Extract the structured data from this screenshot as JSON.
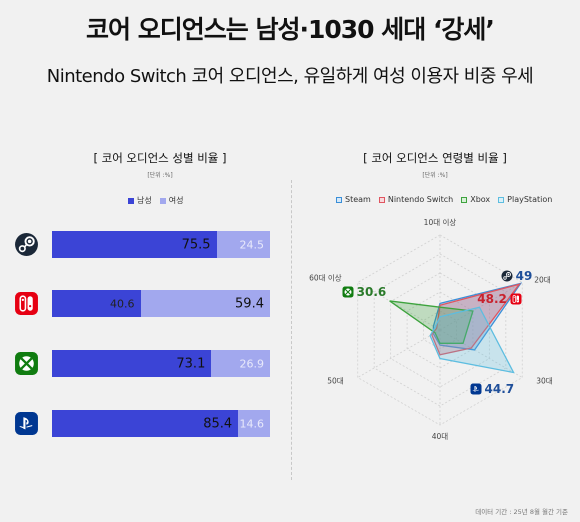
{
  "title": "코어 오디언스는 남성·1030 세대 ‘강세’",
  "subtitle": "Nintendo Switch 코어 오디언스, 유일하게 여성 이용자 비중 우세",
  "note": "데이터 기간 : 25년 8월 월간 기준",
  "colors": {
    "male": "#3b44d6",
    "female": "#a2a8ee"
  },
  "chart_data": [
    {
      "type": "bar",
      "title": "[ 코어 오디언스 성별 비율 ]",
      "unit": "[단위 :%]",
      "categories": [
        "Steam",
        "Nintendo Switch",
        "Xbox",
        "PlayStation"
      ],
      "series": [
        {
          "name": "남성",
          "values": [
            75.5,
            40.6,
            73.1,
            85.4
          ]
        },
        {
          "name": "여성",
          "values": [
            24.5,
            59.4,
            26.9,
            14.6
          ]
        }
      ],
      "stacked": true,
      "orientation": "horizontal",
      "logos": [
        "steam-icon",
        "switch-icon",
        "xbox-icon",
        "playstation-icon"
      ]
    },
    {
      "type": "radar",
      "title": "[ 코어 오디언스 연령별 비율 ]",
      "unit": "[단위 :%]",
      "axes": [
        "10대 이상",
        "20대",
        "30대",
        "40대",
        "50대",
        "60대 이상"
      ],
      "series": [
        {
          "name": "Steam",
          "color": "#3a8fd8",
          "values": [
            14,
            49,
            21,
            8,
            4,
            4
          ]
        },
        {
          "name": "Nintendo Switch",
          "color": "#e05560",
          "values": [
            13,
            48.2,
            19,
            13,
            5,
            2
          ]
        },
        {
          "name": "Xbox",
          "color": "#3ea33e",
          "values": [
            12,
            20,
            14,
            7,
            3,
            30.6
          ]
        },
        {
          "name": "PlayStation",
          "color": "#5dbde0",
          "values": [
            7,
            24,
            44.7,
            15,
            6,
            3
          ]
        }
      ],
      "callouts": [
        {
          "series": "Steam",
          "value": "49",
          "icon": "steam-icon"
        },
        {
          "series": "Nintendo Switch",
          "value": "48.2",
          "icon": "switch-icon"
        },
        {
          "series": "Xbox",
          "value": "30.6",
          "icon": "xbox-icon"
        },
        {
          "series": "PlayStation",
          "value": "44.7",
          "icon": "playstation-icon"
        }
      ]
    }
  ]
}
